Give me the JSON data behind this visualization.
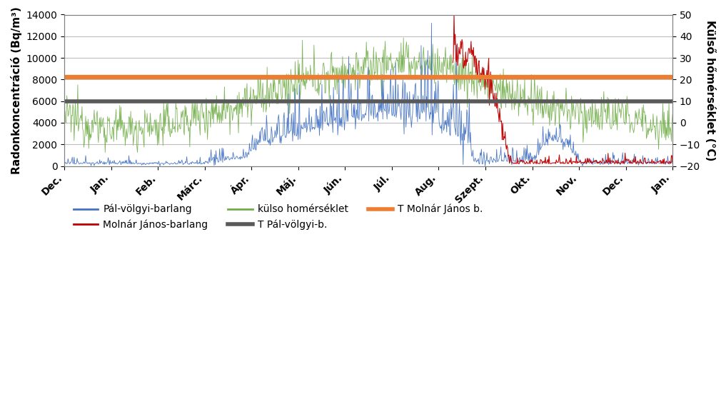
{
  "ylabel_left": "Radonkoncentráció (Bq/m³)",
  "ylabel_right": "Külső hőmérséklet (°C)",
  "xlabels": [
    "Dec.",
    "Jan.",
    "Feb.",
    "Márc.",
    "Ápr.",
    "Máj.",
    "Jún.",
    "Júl.",
    "Aug.",
    "Szept.",
    "Okt.",
    "Nov.",
    "Dec.",
    "Jan."
  ],
  "ylim_left": [
    0,
    14000
  ],
  "ylim_right": [
    -20,
    50
  ],
  "yticks_left": [
    0,
    2000,
    4000,
    6000,
    8000,
    10000,
    12000,
    14000
  ],
  "yticks_right": [
    -20,
    -10,
    0,
    10,
    20,
    30,
    40,
    50
  ],
  "T_palvolgyi": 6000,
  "T_molnar": 8200,
  "color_palvolgyi": "#4472C4",
  "color_molnar": "#C00000",
  "color_kulso": "#70AD47",
  "color_T_palvolgyi": "#595959",
  "color_T_molnar": "#ED7D31",
  "legend_entries": [
    "Pál-völgyi-barlang",
    "Molnár János-barlang",
    "külso homérséklet",
    "T Pál-völgyi-b.",
    "T Molnár János b."
  ],
  "background_color": "#FFFFFF",
  "grid_color": "#BFBFBF"
}
